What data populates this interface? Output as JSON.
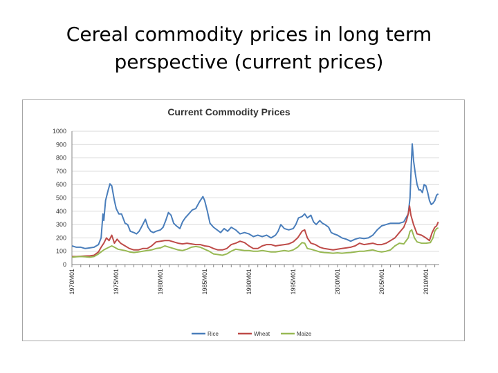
{
  "slide": {
    "title_line1": "Cereal commodity prices in long term",
    "title_line2": "perspective (current prices)"
  },
  "chart_data": {
    "type": "line",
    "title": "Current Commodity  Prices",
    "ylim": [
      0,
      1000
    ],
    "y_ticks": [
      "0",
      "100",
      "200",
      "300",
      "400",
      "500",
      "600",
      "700",
      "800",
      "900",
      "1000"
    ],
    "x_range": [
      1970,
      2011.5
    ],
    "x_tick_labels": [
      "1970M01",
      "1975M01",
      "1980M01",
      "1985M01",
      "1990M01",
      "1995M01",
      "2000M01",
      "2005M01",
      "2010M01"
    ],
    "x_tick_years": [
      1970,
      1975,
      1980,
      1985,
      1990,
      1995,
      2000,
      2005,
      2010
    ],
    "grid": "horizontal",
    "legend_position": "bottom",
    "series": [
      {
        "name": "Rice",
        "color": "#4a7ebb",
        "points": [
          [
            1970,
            140
          ],
          [
            1970.5,
            130
          ],
          [
            1971,
            130
          ],
          [
            1971.5,
            120
          ],
          [
            1972,
            125
          ],
          [
            1972.5,
            130
          ],
          [
            1973,
            150
          ],
          [
            1973.3,
            200
          ],
          [
            1973.5,
            380
          ],
          [
            1973.6,
            330
          ],
          [
            1973.8,
            480
          ],
          [
            1974.1,
            560
          ],
          [
            1974.3,
            605
          ],
          [
            1974.5,
            590
          ],
          [
            1974.8,
            480
          ],
          [
            1975,
            420
          ],
          [
            1975.3,
            380
          ],
          [
            1975.6,
            380
          ],
          [
            1976,
            310
          ],
          [
            1976.3,
            300
          ],
          [
            1976.6,
            250
          ],
          [
            1977,
            240
          ],
          [
            1977.3,
            230
          ],
          [
            1977.6,
            250
          ],
          [
            1978,
            300
          ],
          [
            1978.3,
            340
          ],
          [
            1978.6,
            280
          ],
          [
            1978.9,
            250
          ],
          [
            1979.2,
            240
          ],
          [
            1979.5,
            250
          ],
          [
            1980,
            260
          ],
          [
            1980.3,
            280
          ],
          [
            1980.6,
            330
          ],
          [
            1980.9,
            390
          ],
          [
            1981.2,
            370
          ],
          [
            1981.5,
            310
          ],
          [
            1981.8,
            290
          ],
          [
            1982.2,
            270
          ],
          [
            1982.5,
            320
          ],
          [
            1982.8,
            350
          ],
          [
            1983.2,
            380
          ],
          [
            1983.6,
            410
          ],
          [
            1984,
            420
          ],
          [
            1984.4,
            470
          ],
          [
            1984.8,
            510
          ],
          [
            1985,
            480
          ],
          [
            1985.3,
            400
          ],
          [
            1985.6,
            310
          ],
          [
            1986,
            280
          ],
          [
            1986.4,
            260
          ],
          [
            1986.8,
            240
          ],
          [
            1987.2,
            270
          ],
          [
            1987.6,
            250
          ],
          [
            1988,
            280
          ],
          [
            1988.5,
            260
          ],
          [
            1989,
            230
          ],
          [
            1989.5,
            240
          ],
          [
            1990,
            230
          ],
          [
            1990.5,
            210
          ],
          [
            1991,
            220
          ],
          [
            1991.5,
            210
          ],
          [
            1992,
            220
          ],
          [
            1992.5,
            200
          ],
          [
            1993,
            220
          ],
          [
            1993.3,
            250
          ],
          [
            1993.6,
            300
          ],
          [
            1994,
            270
          ],
          [
            1994.5,
            260
          ],
          [
            1995,
            270
          ],
          [
            1995.3,
            300
          ],
          [
            1995.6,
            350
          ],
          [
            1996,
            360
          ],
          [
            1996.3,
            380
          ],
          [
            1996.6,
            350
          ],
          [
            1997,
            370
          ],
          [
            1997.3,
            320
          ],
          [
            1997.6,
            300
          ],
          [
            1998,
            330
          ],
          [
            1998.3,
            310
          ],
          [
            1998.6,
            300
          ],
          [
            1999,
            280
          ],
          [
            1999.3,
            240
          ],
          [
            1999.6,
            230
          ],
          [
            2000,
            220
          ],
          [
            2000.5,
            200
          ],
          [
            2001,
            190
          ],
          [
            2001.5,
            175
          ],
          [
            2002,
            190
          ],
          [
            2002.5,
            200
          ],
          [
            2003,
            195
          ],
          [
            2003.5,
            200
          ],
          [
            2004,
            220
          ],
          [
            2004.5,
            260
          ],
          [
            2005,
            290
          ],
          [
            2005.5,
            300
          ],
          [
            2006,
            310
          ],
          [
            2006.5,
            310
          ],
          [
            2007,
            310
          ],
          [
            2007.5,
            320
          ],
          [
            2008,
            380
          ],
          [
            2008.2,
            500
          ],
          [
            2008.35,
            760
          ],
          [
            2008.45,
            905
          ],
          [
            2008.6,
            780
          ],
          [
            2008.8,
            680
          ],
          [
            2009,
            600
          ],
          [
            2009.2,
            560
          ],
          [
            2009.4,
            560
          ],
          [
            2009.6,
            540
          ],
          [
            2009.8,
            600
          ],
          [
            2010,
            590
          ],
          [
            2010.2,
            540
          ],
          [
            2010.4,
            480
          ],
          [
            2010.6,
            450
          ],
          [
            2010.8,
            460
          ],
          [
            2011,
            480
          ],
          [
            2011.2,
            520
          ],
          [
            2011.4,
            530
          ]
        ]
      },
      {
        "name": "Wheat",
        "color": "#be4b48",
        "points": [
          [
            1970,
            60
          ],
          [
            1970.5,
            60
          ],
          [
            1971,
            62
          ],
          [
            1971.5,
            64
          ],
          [
            1972,
            65
          ],
          [
            1972.5,
            70
          ],
          [
            1973,
            95
          ],
          [
            1973.3,
            130
          ],
          [
            1973.6,
            160
          ],
          [
            1973.9,
            200
          ],
          [
            1974.2,
            180
          ],
          [
            1974.5,
            220
          ],
          [
            1974.8,
            160
          ],
          [
            1975.1,
            190
          ],
          [
            1975.5,
            160
          ],
          [
            1976,
            140
          ],
          [
            1976.5,
            120
          ],
          [
            1977,
            110
          ],
          [
            1977.5,
            110
          ],
          [
            1978,
            120
          ],
          [
            1978.5,
            120
          ],
          [
            1979,
            140
          ],
          [
            1979.5,
            170
          ],
          [
            1980,
            175
          ],
          [
            1980.5,
            180
          ],
          [
            1981,
            180
          ],
          [
            1981.5,
            170
          ],
          [
            1982,
            160
          ],
          [
            1982.5,
            155
          ],
          [
            1983,
            160
          ],
          [
            1983.5,
            155
          ],
          [
            1984,
            150
          ],
          [
            1984.5,
            150
          ],
          [
            1985,
            140
          ],
          [
            1985.5,
            135
          ],
          [
            1986,
            120
          ],
          [
            1986.5,
            110
          ],
          [
            1987,
            110
          ],
          [
            1987.5,
            120
          ],
          [
            1988,
            150
          ],
          [
            1988.5,
            160
          ],
          [
            1989,
            175
          ],
          [
            1989.5,
            165
          ],
          [
            1990,
            140
          ],
          [
            1990.5,
            120
          ],
          [
            1991,
            120
          ],
          [
            1991.5,
            140
          ],
          [
            1992,
            150
          ],
          [
            1992.5,
            150
          ],
          [
            1993,
            140
          ],
          [
            1993.5,
            145
          ],
          [
            1994,
            150
          ],
          [
            1994.5,
            155
          ],
          [
            1995,
            170
          ],
          [
            1995.5,
            200
          ],
          [
            1996,
            250
          ],
          [
            1996.3,
            260
          ],
          [
            1996.6,
            200
          ],
          [
            1997,
            160
          ],
          [
            1997.5,
            150
          ],
          [
            1998,
            130
          ],
          [
            1998.5,
            120
          ],
          [
            1999,
            115
          ],
          [
            1999.5,
            110
          ],
          [
            2000,
            115
          ],
          [
            2000.5,
            120
          ],
          [
            2001,
            125
          ],
          [
            2001.5,
            130
          ],
          [
            2002,
            140
          ],
          [
            2002.5,
            160
          ],
          [
            2003,
            150
          ],
          [
            2003.5,
            155
          ],
          [
            2004,
            160
          ],
          [
            2004.5,
            150
          ],
          [
            2005,
            150
          ],
          [
            2005.5,
            160
          ],
          [
            2006,
            180
          ],
          [
            2006.5,
            200
          ],
          [
            2007,
            240
          ],
          [
            2007.5,
            280
          ],
          [
            2007.8,
            330
          ],
          [
            2008,
            380
          ],
          [
            2008.15,
            440
          ],
          [
            2008.3,
            370
          ],
          [
            2008.6,
            300
          ],
          [
            2009,
            230
          ],
          [
            2009.5,
            220
          ],
          [
            2010,
            200
          ],
          [
            2010.4,
            180
          ],
          [
            2010.7,
            240
          ],
          [
            2011,
            280
          ],
          [
            2011.2,
            290
          ],
          [
            2011.4,
            320
          ]
        ]
      },
      {
        "name": "Maize",
        "color": "#98b954",
        "points": [
          [
            1970,
            55
          ],
          [
            1970.5,
            58
          ],
          [
            1971,
            60
          ],
          [
            1971.5,
            58
          ],
          [
            1972,
            55
          ],
          [
            1972.5,
            60
          ],
          [
            1973,
            80
          ],
          [
            1973.3,
            95
          ],
          [
            1973.6,
            110
          ],
          [
            1973.9,
            120
          ],
          [
            1974.2,
            130
          ],
          [
            1974.5,
            140
          ],
          [
            1974.8,
            130
          ],
          [
            1975.2,
            115
          ],
          [
            1975.6,
            110
          ],
          [
            1976,
            105
          ],
          [
            1976.5,
            95
          ],
          [
            1977,
            90
          ],
          [
            1977.5,
            95
          ],
          [
            1978,
            100
          ],
          [
            1978.5,
            105
          ],
          [
            1979,
            110
          ],
          [
            1979.5,
            120
          ],
          [
            1980,
            125
          ],
          [
            1980.5,
            140
          ],
          [
            1981,
            130
          ],
          [
            1981.5,
            120
          ],
          [
            1982,
            110
          ],
          [
            1982.5,
            105
          ],
          [
            1983,
            115
          ],
          [
            1983.5,
            130
          ],
          [
            1984,
            135
          ],
          [
            1984.5,
            130
          ],
          [
            1985,
            115
          ],
          [
            1985.5,
            100
          ],
          [
            1986,
            80
          ],
          [
            1986.5,
            75
          ],
          [
            1987,
            70
          ],
          [
            1987.5,
            80
          ],
          [
            1988,
            100
          ],
          [
            1988.5,
            115
          ],
          [
            1989,
            110
          ],
          [
            1989.5,
            105
          ],
          [
            1990,
            105
          ],
          [
            1990.5,
            100
          ],
          [
            1991,
            100
          ],
          [
            1991.5,
            105
          ],
          [
            1992,
            100
          ],
          [
            1992.5,
            95
          ],
          [
            1993,
            95
          ],
          [
            1993.5,
            100
          ],
          [
            1994,
            105
          ],
          [
            1994.5,
            100
          ],
          [
            1995,
            110
          ],
          [
            1995.5,
            130
          ],
          [
            1996,
            165
          ],
          [
            1996.3,
            160
          ],
          [
            1996.6,
            120
          ],
          [
            1997,
            115
          ],
          [
            1997.5,
            105
          ],
          [
            1998,
            95
          ],
          [
            1998.5,
            90
          ],
          [
            1999,
            88
          ],
          [
            1999.5,
            85
          ],
          [
            2000,
            88
          ],
          [
            2000.5,
            85
          ],
          [
            2001,
            88
          ],
          [
            2001.5,
            90
          ],
          [
            2002,
            95
          ],
          [
            2002.5,
            100
          ],
          [
            2003,
            100
          ],
          [
            2003.5,
            105
          ],
          [
            2004,
            110
          ],
          [
            2004.5,
            100
          ],
          [
            2005,
            95
          ],
          [
            2005.5,
            100
          ],
          [
            2006,
            110
          ],
          [
            2006.5,
            140
          ],
          [
            2007,
            160
          ],
          [
            2007.5,
            155
          ],
          [
            2008,
            200
          ],
          [
            2008.2,
            250
          ],
          [
            2008.4,
            260
          ],
          [
            2008.7,
            200
          ],
          [
            2009,
            170
          ],
          [
            2009.5,
            160
          ],
          [
            2010,
            160
          ],
          [
            2010.5,
            165
          ],
          [
            2010.8,
            200
          ],
          [
            2011,
            250
          ],
          [
            2011.2,
            270
          ],
          [
            2011.4,
            275
          ]
        ]
      }
    ]
  }
}
